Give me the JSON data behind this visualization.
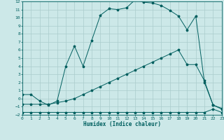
{
  "bg_color": "#cce8e8",
  "grid_color": "#aacccc",
  "line_color": "#005f5f",
  "xlabel": "Humidex (Indice chaleur)",
  "xlim": [
    0,
    23
  ],
  "ylim": [
    -2,
    12
  ],
  "xticks": [
    0,
    1,
    2,
    3,
    4,
    5,
    6,
    7,
    8,
    9,
    10,
    11,
    12,
    13,
    14,
    15,
    16,
    17,
    18,
    19,
    20,
    21,
    22,
    23
  ],
  "yticks": [
    -2,
    -1,
    0,
    1,
    2,
    3,
    4,
    5,
    6,
    7,
    8,
    9,
    10,
    11,
    12
  ],
  "curve1_x": [
    0,
    1,
    2,
    3,
    4,
    5,
    6,
    7,
    8,
    9,
    10,
    11,
    12,
    13,
    14,
    15,
    16,
    17,
    18,
    19,
    20,
    21,
    22,
    23
  ],
  "curve1_y": [
    0.5,
    0.5,
    -0.3,
    -0.8,
    -0.3,
    4.0,
    6.5,
    4.0,
    7.2,
    10.3,
    11.1,
    11.0,
    11.2,
    12.2,
    11.9,
    11.8,
    11.5,
    10.9,
    10.2,
    8.5,
    10.2,
    2.0,
    -0.8,
    -1.2
  ],
  "curve2_x": [
    0,
    1,
    2,
    3,
    4,
    5,
    6,
    7,
    8,
    9,
    10,
    11,
    12,
    13,
    14,
    15,
    16,
    17,
    18,
    19,
    20,
    21,
    22,
    23
  ],
  "curve2_y": [
    -1.7,
    -1.7,
    -1.7,
    -1.7,
    -1.7,
    -1.7,
    -1.7,
    -1.7,
    -1.7,
    -1.7,
    -1.7,
    -1.7,
    -1.7,
    -1.7,
    -1.7,
    -1.7,
    -1.7,
    -1.7,
    -1.7,
    -1.7,
    -1.7,
    -1.7,
    -1.3,
    -1.7
  ],
  "curve3_x": [
    0,
    1,
    2,
    3,
    4,
    5,
    6,
    7,
    8,
    9,
    10,
    11,
    12,
    13,
    14,
    15,
    16,
    17,
    18,
    19,
    20,
    21,
    22,
    23
  ],
  "curve3_y": [
    -0.7,
    -0.7,
    -0.7,
    -0.7,
    -0.5,
    -0.3,
    0.0,
    0.5,
    1.0,
    1.5,
    2.0,
    2.5,
    3.0,
    3.5,
    4.0,
    4.5,
    5.0,
    5.5,
    6.0,
    4.2,
    4.2,
    2.2,
    -0.8,
    -1.3
  ]
}
